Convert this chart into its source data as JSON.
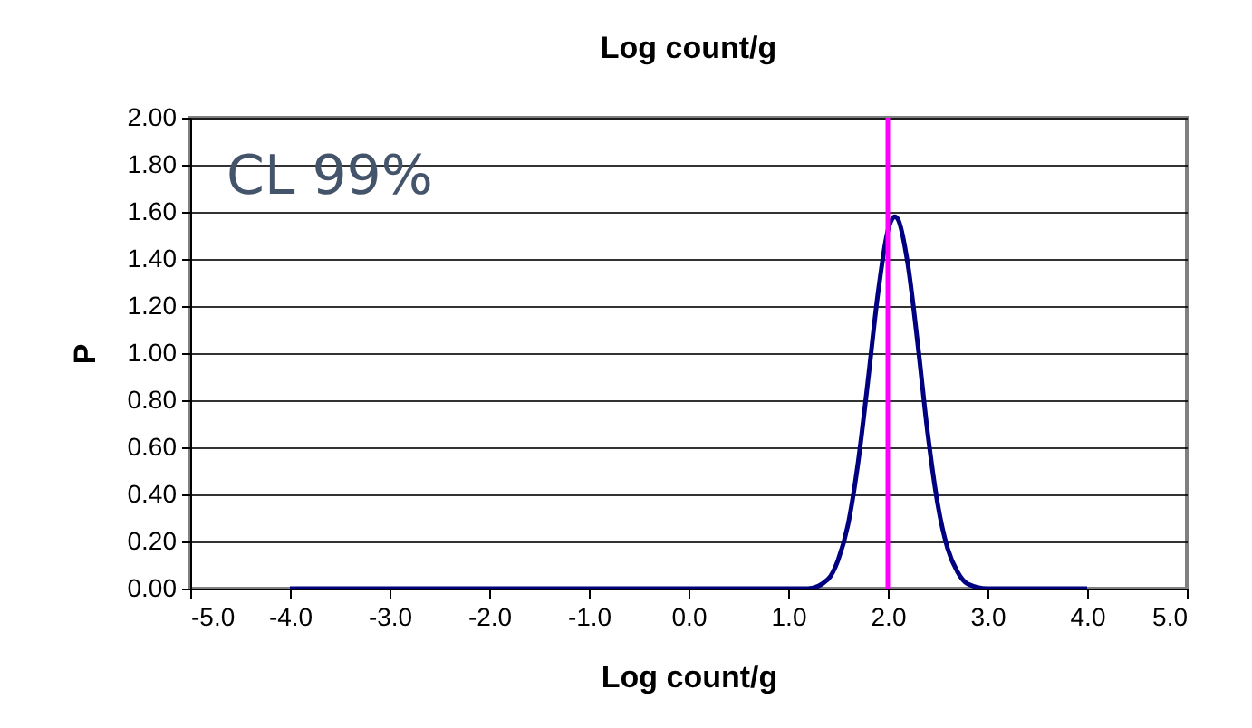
{
  "chart_data": {
    "type": "line",
    "title": "Log count/g",
    "xlabel": "Log count/g",
    "ylabel": "P",
    "annotations": [
      "CL 99%"
    ],
    "x": [
      -4.0,
      1.0,
      1.2,
      1.4,
      1.5,
      1.6,
      1.7,
      1.8,
      1.9,
      2.0,
      2.07,
      2.1,
      2.2,
      2.3,
      2.4,
      2.5,
      2.6,
      2.7,
      2.8,
      3.0,
      3.2,
      4.0
    ],
    "series": [
      {
        "color": "#000080",
        "values": [
          0.0,
          0.0,
          0.0,
          0.04,
          0.12,
          0.27,
          0.53,
          0.88,
          1.25,
          1.52,
          1.58,
          1.57,
          1.38,
          1.04,
          0.66,
          0.36,
          0.17,
          0.07,
          0.02,
          0.0,
          0.0,
          0.0
        ]
      }
    ],
    "ref_lines": [
      {
        "axis": "x",
        "value": 2.0,
        "color": "#ff00ff"
      }
    ],
    "xlim": [
      -5.0,
      5.0
    ],
    "xticks": [
      {
        "value": -5,
        "label": "-5.0"
      },
      {
        "value": -4,
        "label": "-4.0"
      },
      {
        "value": -3,
        "label": "-3.0"
      },
      {
        "value": -2,
        "label": "-2.0"
      },
      {
        "value": -1,
        "label": "-1.0"
      },
      {
        "value": 0,
        "label": "0.0"
      },
      {
        "value": 1,
        "label": "1.0"
      },
      {
        "value": 2,
        "label": "2.0"
      },
      {
        "value": 3,
        "label": "3.0"
      },
      {
        "value": 4,
        "label": "4.0"
      },
      {
        "value": 5,
        "label": "5.0"
      }
    ],
    "ylim": [
      0,
      2.0
    ],
    "yticks": [
      {
        "value": 0,
        "label": "0.00"
      },
      {
        "value": 0.2,
        "label": "0.20"
      },
      {
        "value": 0.4,
        "label": "0.40"
      },
      {
        "value": 0.6,
        "label": "0.60"
      },
      {
        "value": 0.8,
        "label": "0.80"
      },
      {
        "value": 1.0,
        "label": "1.00"
      },
      {
        "value": 1.2,
        "label": "1.20"
      },
      {
        "value": 1.4,
        "label": "1.40"
      },
      {
        "value": 1.6,
        "label": "1.60"
      },
      {
        "value": 1.8,
        "label": "1.80"
      },
      {
        "value": 2.0,
        "label": "2.00"
      }
    ],
    "grid": "y",
    "marker": "none"
  }
}
